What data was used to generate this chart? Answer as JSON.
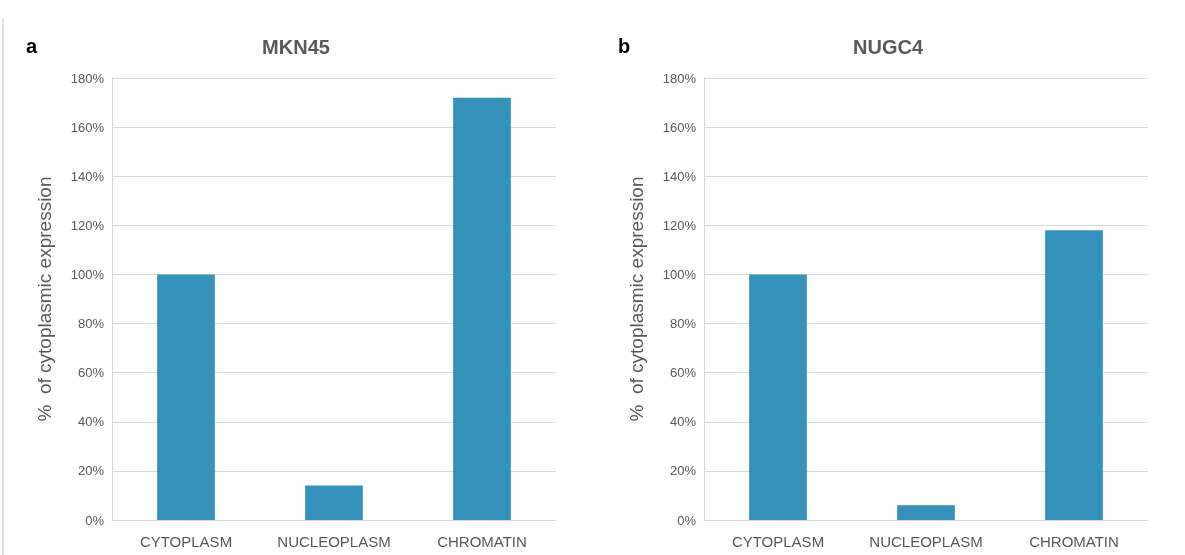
{
  "chart_data": [
    {
      "type": "bar",
      "title": "MKN45",
      "ylabel": "%  of cytoplasmic expression",
      "annotations": [
        "a"
      ],
      "categories": [
        "CYTOPLASM",
        "NUCLEOPLASM",
        "CHROMATIN"
      ],
      "values": [
        100,
        14,
        172
      ],
      "color": "#3593bb",
      "ylim": [
        0,
        180
      ],
      "yticks": [
        {
          "value": 0,
          "label": "0%"
        },
        {
          "value": 20,
          "label": "20%"
        },
        {
          "value": 40,
          "label": "40%"
        },
        {
          "value": 60,
          "label": "60%"
        },
        {
          "value": 80,
          "label": "80%"
        },
        {
          "value": 100,
          "label": "100%"
        },
        {
          "value": 120,
          "label": "120%"
        },
        {
          "value": 140,
          "label": "140%"
        },
        {
          "value": 160,
          "label": "160%"
        },
        {
          "value": 180,
          "label": "180%"
        }
      ],
      "grid": "y"
    },
    {
      "type": "bar",
      "title": "NUGC4",
      "ylabel": "%  of cytoplasmic expression",
      "annotations": [
        "b"
      ],
      "categories": [
        "CYTOPLASM",
        "NUCLEOPLASM",
        "CHROMATIN"
      ],
      "values": [
        100,
        6,
        118
      ],
      "color": "#3593bb",
      "ylim": [
        0,
        180
      ],
      "yticks": [
        {
          "value": 0,
          "label": "0%"
        },
        {
          "value": 20,
          "label": "20%"
        },
        {
          "value": 40,
          "label": "40%"
        },
        {
          "value": 60,
          "label": "60%"
        },
        {
          "value": 80,
          "label": "80%"
        },
        {
          "value": 100,
          "label": "100%"
        },
        {
          "value": 120,
          "label": "120%"
        },
        {
          "value": 140,
          "label": "140%"
        },
        {
          "value": 160,
          "label": "160%"
        },
        {
          "value": 180,
          "label": "180%"
        }
      ],
      "grid": "y"
    }
  ]
}
